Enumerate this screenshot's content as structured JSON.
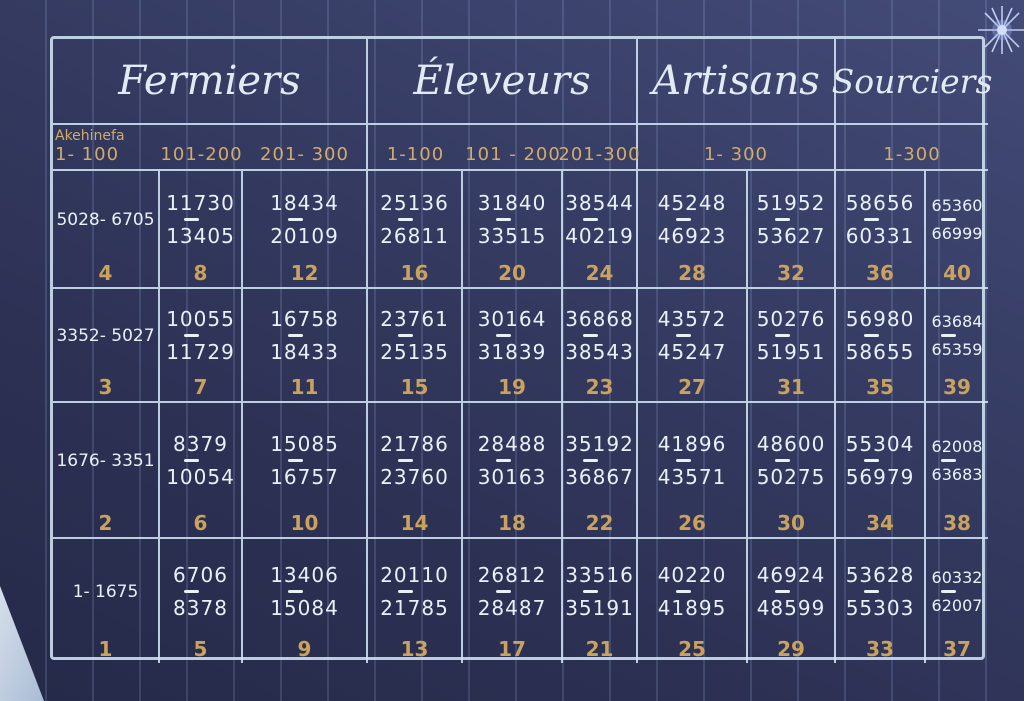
{
  "table": {
    "corner_label": "Akehinefa",
    "groups": [
      "Fermiers",
      "Éleveurs",
      "Artisans",
      "Sourciers"
    ],
    "subheaders": [
      "1- 100",
      "101-200",
      "201- 300",
      "1-100",
      "101 - 200",
      "201-300",
      "1- 300",
      "1-300"
    ],
    "colors": {
      "paper": "#2e345a",
      "line": "#d0e4f2",
      "numbers": "#e9f1f8",
      "gold": "#d2ab6b"
    },
    "rows": [
      [
        [
          "5028",
          "6705",
          "4"
        ],
        [
          "11730",
          "13405",
          "8"
        ],
        [
          "18434",
          "20109",
          "12"
        ],
        [
          "25136",
          "26811",
          "16"
        ],
        [
          "31840",
          "33515",
          "20"
        ],
        [
          "38544",
          "40219",
          "24"
        ],
        [
          "45248",
          "46923",
          "28"
        ],
        [
          "51952",
          "53627",
          "32"
        ],
        [
          "58656",
          "60331",
          "36"
        ],
        [
          "65360",
          "66999",
          "40"
        ]
      ],
      [
        [
          "3352",
          "5027",
          "3"
        ],
        [
          "10055",
          "11729",
          "7"
        ],
        [
          "16758",
          "18433",
          "11"
        ],
        [
          "23761",
          "25135",
          "15"
        ],
        [
          "30164",
          "31839",
          "19"
        ],
        [
          "36868",
          "38543",
          "23"
        ],
        [
          "43572",
          "45247",
          "27"
        ],
        [
          "50276",
          "51951",
          "31"
        ],
        [
          "56980",
          "58655",
          "35"
        ],
        [
          "63684",
          "65359",
          "39"
        ]
      ],
      [
        [
          "1676",
          "3351",
          "2"
        ],
        [
          "8379",
          "10054",
          "6"
        ],
        [
          "15085",
          "16757",
          "10"
        ],
        [
          "21786",
          "23760",
          "14"
        ],
        [
          "28488",
          "30163",
          "18"
        ],
        [
          "35192",
          "36867",
          "22"
        ],
        [
          "41896",
          "43571",
          "26"
        ],
        [
          "48600",
          "50275",
          "30"
        ],
        [
          "55304",
          "56979",
          "34"
        ],
        [
          "62008",
          "63683",
          "38"
        ]
      ],
      [
        [
          "1",
          "1675",
          "1"
        ],
        [
          "6706",
          "8378",
          "5"
        ],
        [
          "13406",
          "15084",
          "9"
        ],
        [
          "20110",
          "21785",
          "13"
        ],
        [
          "26812",
          "28487",
          "17"
        ],
        [
          "33516",
          "35191",
          "21"
        ],
        [
          "40220",
          "41895",
          "25"
        ],
        [
          "46924",
          "48599",
          "29"
        ],
        [
          "53628",
          "55303",
          "33"
        ],
        [
          "60332",
          "62007",
          "37"
        ]
      ]
    ]
  }
}
